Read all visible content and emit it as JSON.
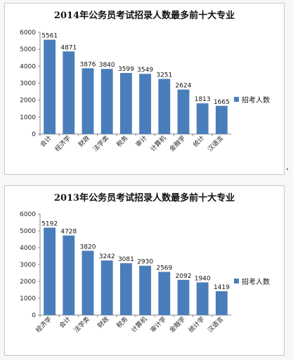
{
  "colors": {
    "bar": "#4a7ebb",
    "grid": "#cfcfcf",
    "axis": "#888888"
  },
  "chart_data": [
    {
      "type": "bar",
      "title": "2014年公务员考试招录人数最多前十大专业",
      "categories": [
        "会计",
        "经济学",
        "财政",
        "法学类",
        "税务",
        "审计",
        "计算机",
        "金融学",
        "统计",
        "汉语言"
      ],
      "series": [
        {
          "name": "招考人数",
          "values": [
            5561,
            4871,
            3876,
            3840,
            3599,
            3549,
            3251,
            2624,
            1813,
            1665
          ]
        }
      ],
      "ylim": [
        0,
        6000
      ],
      "yticks": [
        "0",
        "1000",
        "2000",
        "3000",
        "4000",
        "5000",
        "6000"
      ],
      "legend_position": "right",
      "grid": false
    },
    {
      "type": "bar",
      "title": "2013年公务员考试招录人数最多前十大专业",
      "categories": [
        "经济学",
        "会计",
        "法学类",
        "财政",
        "税务",
        "计算机",
        "审计学",
        "金融学",
        "统计学",
        "汉语言"
      ],
      "series": [
        {
          "name": "招考人数",
          "values": [
            5192,
            4728,
            3820,
            3242,
            3081,
            2930,
            2569,
            2092,
            1940,
            1419
          ]
        }
      ],
      "ylim": [
        0,
        6000
      ],
      "yticks": [
        "0",
        "1000",
        "2000",
        "3000",
        "4000",
        "5000",
        "6000"
      ],
      "legend_position": "right",
      "grid": false
    }
  ]
}
